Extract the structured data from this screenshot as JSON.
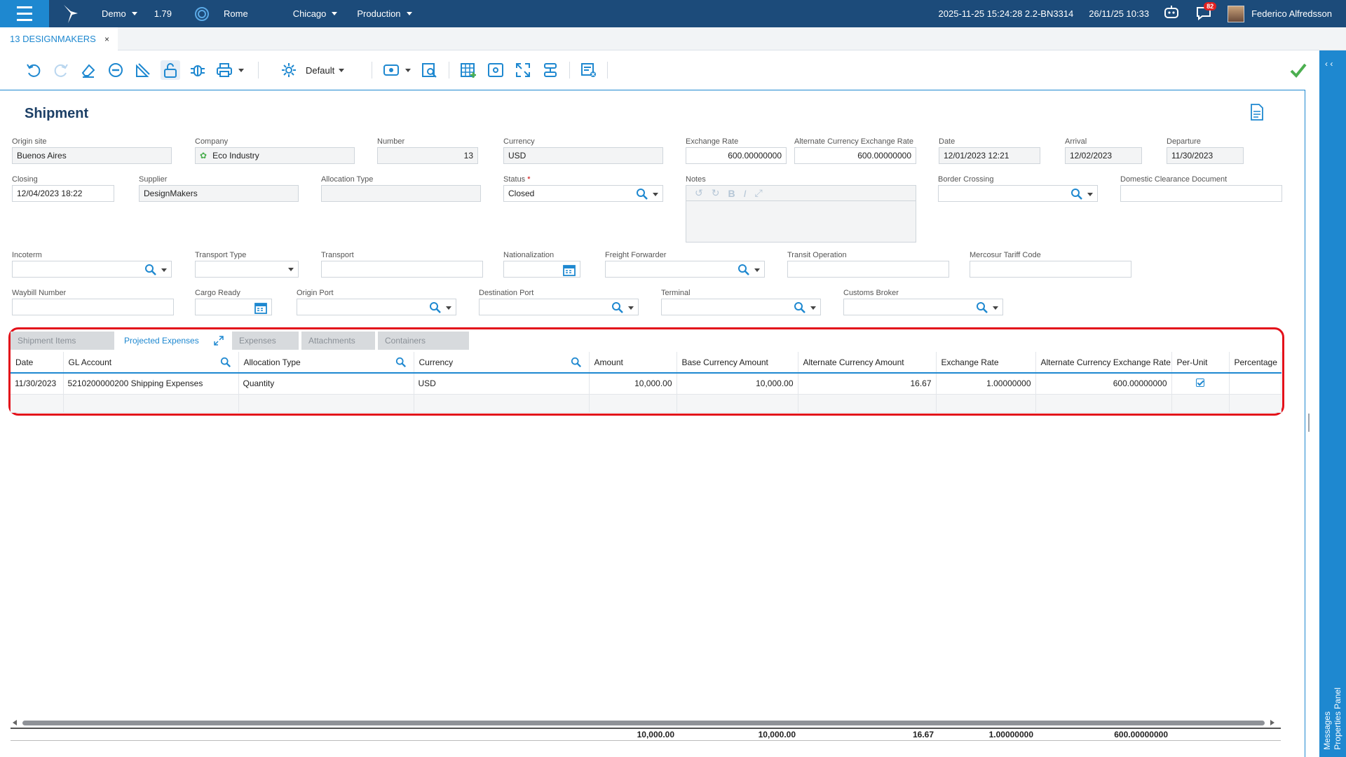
{
  "topbar": {
    "env": "Demo",
    "version": "1.79",
    "location": "Rome",
    "site": "Chicago",
    "mode": "Production",
    "build": "2025-11-25 15:24:28 2.2-BN3314",
    "datetime": "26/11/25 10:33",
    "notifications": "82",
    "user": "Federico Alfredsson"
  },
  "tab": {
    "label": "13 DESIGNMAKERS",
    "close": "×"
  },
  "toolbar": {
    "layout": "Default"
  },
  "form": {
    "title": "Shipment",
    "origin_site": {
      "label": "Origin site",
      "value": "Buenos Aires"
    },
    "company": {
      "label": "Company",
      "value": "Eco Industry"
    },
    "number": {
      "label": "Number",
      "value": "13"
    },
    "currency": {
      "label": "Currency",
      "value": "USD"
    },
    "exchange_rate": {
      "label": "Exchange Rate",
      "value": "600.00000000"
    },
    "alt_exchange_rate": {
      "label": "Alternate Currency Exchange Rate",
      "value": "600.00000000"
    },
    "date": {
      "label": "Date",
      "value": "12/01/2023 12:21"
    },
    "arrival": {
      "label": "Arrival",
      "value": "12/02/2023"
    },
    "departure": {
      "label": "Departure",
      "value": "11/30/2023"
    },
    "closing": {
      "label": "Closing",
      "value": "12/04/2023 18:22"
    },
    "supplier": {
      "label": "Supplier",
      "value": "DesignMakers"
    },
    "allocation_type": {
      "label": "Allocation Type",
      "value": ""
    },
    "status": {
      "label": "Status",
      "required": "*",
      "value": "Closed"
    },
    "notes": {
      "label": "Notes",
      "value": ""
    },
    "border_crossing": {
      "label": "Border Crossing",
      "value": ""
    },
    "domestic_clearance": {
      "label": "Domestic Clearance Document",
      "value": ""
    },
    "incoterm": {
      "label": "Incoterm",
      "value": ""
    },
    "transport_type": {
      "label": "Transport Type",
      "value": ""
    },
    "transport": {
      "label": "Transport",
      "value": ""
    },
    "nationalization": {
      "label": "Nationalization",
      "value": ""
    },
    "freight_forwarder": {
      "label": "Freight Forwarder",
      "value": ""
    },
    "transit_operation": {
      "label": "Transit Operation",
      "value": ""
    },
    "mercosur": {
      "label": "Mercosur Tariff Code",
      "value": ""
    },
    "waybill": {
      "label": "Waybill Number",
      "value": ""
    },
    "cargo_ready": {
      "label": "Cargo Ready",
      "value": ""
    },
    "origin_port": {
      "label": "Origin Port",
      "value": ""
    },
    "destination_port": {
      "label": "Destination Port",
      "value": ""
    },
    "terminal": {
      "label": "Terminal",
      "value": ""
    },
    "customs_broker": {
      "label": "Customs Broker",
      "value": ""
    }
  },
  "grid": {
    "tabs": [
      "Shipment Items",
      "Projected Expenses",
      "Expenses",
      "Attachments",
      "Containers"
    ],
    "columns": [
      "Date",
      "GL Account",
      "Allocation Type",
      "Currency",
      "Amount",
      "Base Currency Amount",
      "Alternate Currency Amount",
      "Exchange Rate",
      "Alternate Currency Exchange Rate",
      "Per-Unit",
      "Percentage"
    ],
    "rows": [
      {
        "date": "11/30/2023",
        "gl_account": "5210200000200 Shipping Expenses",
        "allocation_type": "Quantity",
        "currency": "USD",
        "amount": "10,000.00",
        "base_amount": "10,000.00",
        "alt_amount": "16.67",
        "exchange_rate": "1.00000000",
        "alt_exchange_rate": "600.00000000",
        "per_unit": true,
        "percentage": ""
      }
    ],
    "totals": {
      "amount": "10,000.00",
      "base_amount": "10,000.00",
      "alt_amount": "16.67",
      "exchange_rate": "1.00000000",
      "alt_exchange_rate": "600.00000000"
    }
  },
  "right_panel": {
    "messages": "Messages",
    "properties": "Properties Panel"
  },
  "colors": {
    "topbar": "#1c4b7a",
    "accent": "#1e88d0",
    "highlight": "#e3101a",
    "save": "#4caf50"
  }
}
